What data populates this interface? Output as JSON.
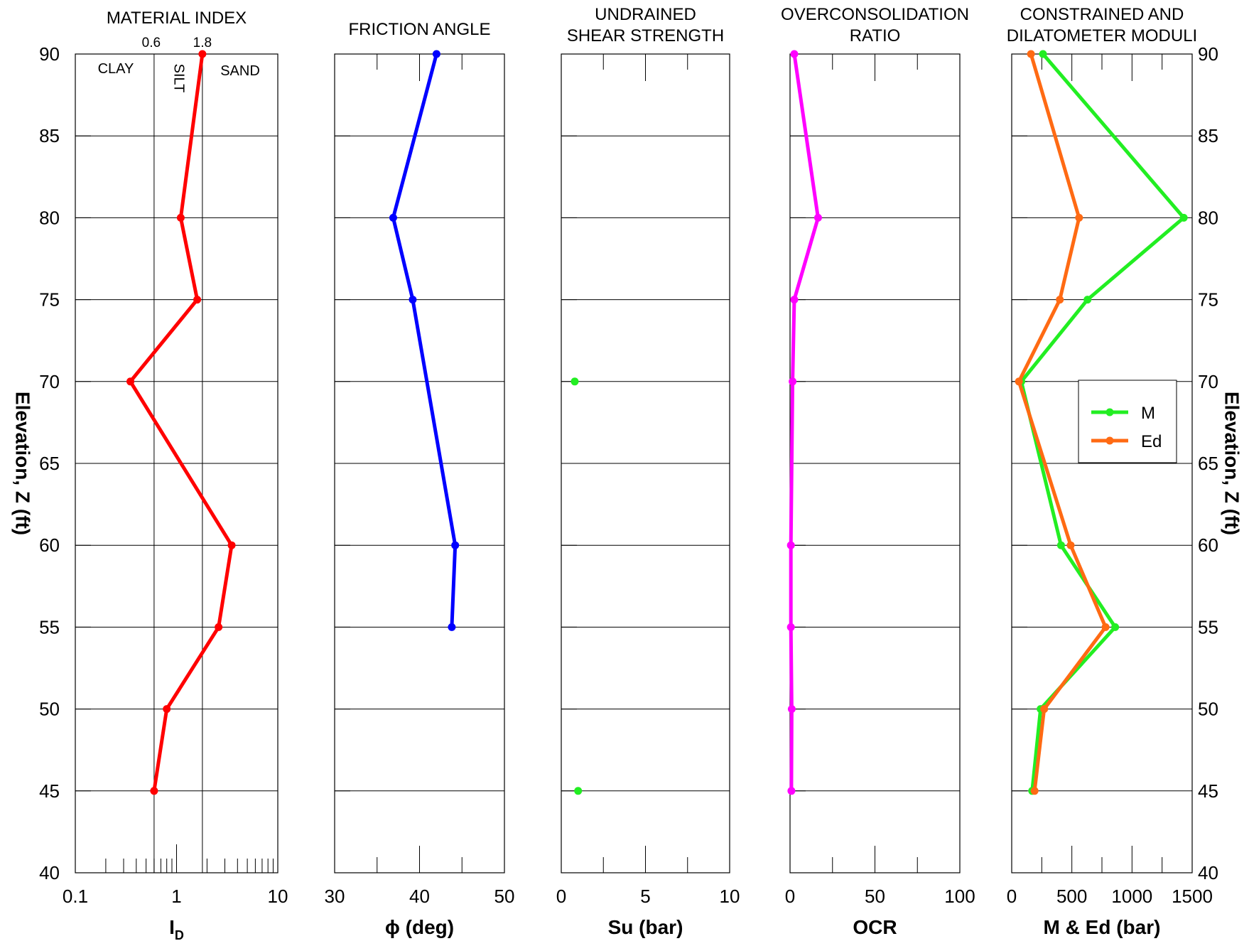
{
  "chart_data": {
    "type": "line",
    "y_axis": {
      "label": "Elevation, Z (ft)",
      "ylim": [
        40,
        90
      ],
      "ticks": [
        40,
        45,
        50,
        55,
        60,
        65,
        70,
        75,
        80,
        85,
        90
      ]
    },
    "elevations": [
      90,
      80,
      75,
      70,
      60,
      55,
      50,
      45
    ],
    "panels": [
      {
        "title_lines": [
          "MATERIAL INDEX"
        ],
        "xlabel_main": "I",
        "xlabel_sub": "D",
        "scale": "log",
        "xlim": [
          0.1,
          10
        ],
        "xticks": [
          0.1,
          1,
          10
        ],
        "xtick_labels": [
          "0.1",
          "1",
          "10"
        ],
        "top_tick_labels": [
          "0.6",
          "1.8"
        ],
        "boundaries": [
          0.6,
          1.8
        ],
        "zones": [
          "CLAY",
          "SILT",
          "SAND"
        ],
        "series": [
          {
            "name": "",
            "color": "#ff0000",
            "points": [
              [
                1.8,
                90
              ],
              [
                1.1,
                80
              ],
              [
                1.6,
                75
              ],
              [
                0.35,
                70
              ],
              [
                3.5,
                60
              ],
              [
                2.6,
                55
              ],
              [
                0.8,
                50
              ],
              [
                0.6,
                45
              ]
            ]
          }
        ]
      },
      {
        "title_lines": [
          "FRICTION ANGLE"
        ],
        "xlabel_main": "ϕ (deg)",
        "scale": "linear",
        "xlim": [
          30,
          50
        ],
        "xticks": [
          30,
          40,
          50
        ],
        "xtick_labels": [
          "30",
          "40",
          "50"
        ],
        "series": [
          {
            "name": "",
            "color": "#0000ff",
            "points": [
              [
                42.0,
                90
              ],
              [
                36.9,
                80
              ],
              [
                39.2,
                75
              ],
              [
                44.2,
                60
              ],
              [
                43.8,
                55
              ]
            ]
          }
        ]
      },
      {
        "title_lines": [
          "UNDRAINED",
          "SHEAR STRENGTH"
        ],
        "xlabel_main": "Su (bar)",
        "scale": "linear",
        "xlim": [
          0,
          10
        ],
        "xticks": [
          0,
          5,
          10
        ],
        "xtick_labels": [
          "0",
          "5",
          "10"
        ],
        "series": [
          {
            "name": "",
            "color": "#22ee22",
            "markers_only": true,
            "points": [
              [
                0.8,
                70
              ],
              [
                1.0,
                45
              ]
            ]
          }
        ]
      },
      {
        "title_lines": [
          "OVERCONSOLIDATION",
          "RATIO"
        ],
        "xlabel_main": "OCR",
        "scale": "linear",
        "xlim": [
          0,
          100
        ],
        "xticks": [
          0,
          50,
          100
        ],
        "xtick_labels": [
          "0",
          "50",
          "100"
        ],
        "series": [
          {
            "name": "",
            "color": "#ff00ff",
            "points": [
              [
                2.5,
                90
              ],
              [
                16.5,
                80
              ],
              [
                2.5,
                75
              ],
              [
                1.5,
                70
              ],
              [
                0.5,
                60
              ],
              [
                0.5,
                55
              ],
              [
                1.0,
                50
              ],
              [
                0.8,
                45
              ]
            ]
          }
        ]
      },
      {
        "title_lines": [
          "CONSTRAINED AND",
          "DILATOMETER MODULI"
        ],
        "xlabel_main": "M & Ed (bar)",
        "scale": "linear",
        "xlim": [
          0,
          1500
        ],
        "xticks": [
          0,
          500,
          1000,
          1500
        ],
        "xtick_labels": [
          "0",
          "500",
          "1000",
          "1500"
        ],
        "legend": {
          "position": "right-middle"
        },
        "series": [
          {
            "name": "M",
            "color": "#22ee22",
            "points": [
              [
                260,
                90
              ],
              [
                1430,
                80
              ],
              [
                630,
                75
              ],
              [
                80,
                70
              ],
              [
                410,
                60
              ],
              [
                860,
                55
              ],
              [
                240,
                50
              ],
              [
                170,
                45
              ]
            ]
          },
          {
            "name": "Ed",
            "color": "#ff6a13",
            "points": [
              [
                160,
                90
              ],
              [
                560,
                80
              ],
              [
                400,
                75
              ],
              [
                60,
                70
              ],
              [
                490,
                60
              ],
              [
                780,
                55
              ],
              [
                270,
                50
              ],
              [
                190,
                45
              ]
            ]
          }
        ]
      }
    ]
  }
}
